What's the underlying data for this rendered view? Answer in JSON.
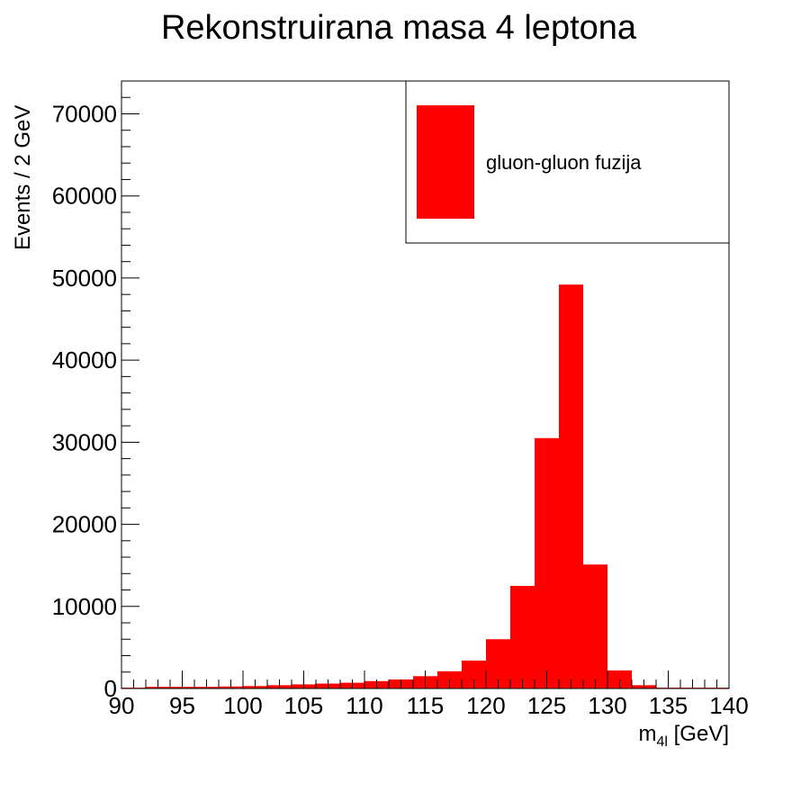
{
  "chart_data": {
    "type": "bar",
    "title": "Rekonstruirana masa 4 leptona",
    "xlabel_main": "m",
    "xlabel_sub": "4l",
    "xlabel_unit": " [GeV]",
    "ylabel": "Events / 2 GeV",
    "xlim": [
      90,
      140
    ],
    "ylim": [
      0,
      74000
    ],
    "bin_width": 2,
    "x_ticks": [
      "90",
      "95",
      "100",
      "105",
      "110",
      "115",
      "120",
      "125",
      "130",
      "135",
      "140"
    ],
    "y_ticks": [
      "0",
      "10000",
      "20000",
      "30000",
      "40000",
      "50000",
      "60000",
      "70000"
    ],
    "bin_edges": [
      90,
      92,
      94,
      96,
      98,
      100,
      102,
      104,
      106,
      108,
      110,
      112,
      114,
      116,
      118,
      120,
      122,
      124,
      126,
      128,
      130,
      132,
      134,
      136,
      138
    ],
    "values": [
      100,
      200,
      200,
      200,
      250,
      300,
      400,
      500,
      600,
      700,
      900,
      1100,
      1500,
      2100,
      3400,
      6000,
      12500,
      30500,
      49200,
      15100,
      2200,
      400,
      100,
      100,
      100
    ],
    "legend": [
      {
        "name": "gluon-gluon fuzija",
        "color": "#ff0000"
      }
    ],
    "legend_position": "top-right",
    "fill_color": "#ff0000",
    "grid": false
  }
}
